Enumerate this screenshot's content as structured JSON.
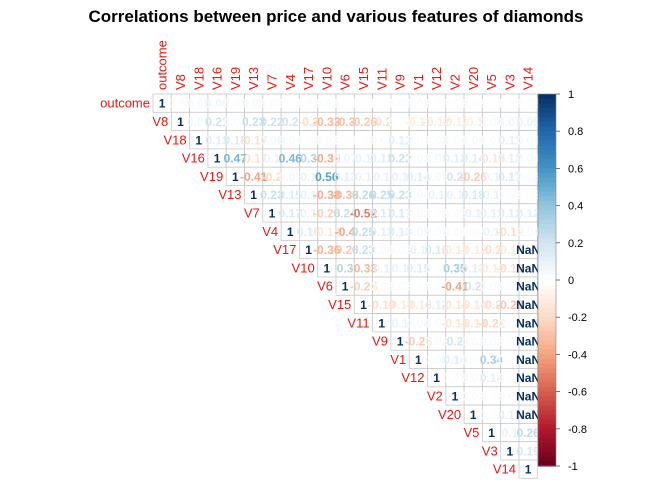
{
  "chart_data": {
    "type": "heatmap",
    "style": "upper-triangle correlation matrix (corrplot)",
    "title": "Correlations between price and various features of diamonds",
    "variables": [
      "outcome",
      "V8",
      "V18",
      "V16",
      "V19",
      "V13",
      "V7",
      "V4",
      "V17",
      "V10",
      "V6",
      "V15",
      "V11",
      "V9",
      "V1",
      "V12",
      "V2",
      "V20",
      "V5",
      "V3",
      "V14"
    ],
    "colorbar": {
      "ticks": [
        "1",
        "0.8",
        "0.6",
        "0.4",
        "0.2",
        "0",
        "-0.2",
        "-0.4",
        "-0.6",
        "-0.8",
        "-1"
      ],
      "tick_values": [
        1,
        0.8,
        0.6,
        0.4,
        0.2,
        0,
        -0.2,
        -0.4,
        -0.6,
        -0.8,
        -1
      ],
      "negative_color": "#67001f",
      "mid_color": "#ffffff",
      "positive_color": "#053061"
    },
    "label_color": "#e8170f",
    "matrix_upper": [
      [
        1,
        0.02,
        0.05,
        0.06,
        0.02,
        0.05,
        0.02,
        0.01,
        0.02,
        0.03,
        0.01,
        0.01,
        0.01,
        0.03,
        0.03,
        0.02,
        0.02,
        0.02,
        0.01,
        0.02,
        0.02
      ],
      [
        1,
        0.06,
        0.21,
        0.02,
        0.23,
        0.22,
        0.2,
        -0.2,
        -0.33,
        -0.3,
        -0.26,
        -0.2,
        0.01,
        -0.11,
        -0.12,
        -0.11,
        -0.1,
        0.04,
        0.07,
        0.09
      ],
      [
        1,
        0.13,
        0.15,
        -0.17,
        0.05,
        0.04,
        0.02,
        0.03,
        0.01,
        0.02,
        0.03,
        0.12,
        0.02,
        0.03,
        0.04,
        0.04,
        0.03,
        0.11,
        0.04
      ],
      [
        1,
        0.47,
        -0.17,
        0.1,
        0.46,
        0.3,
        -0.39,
        0.07,
        0.1,
        0.12,
        0.22,
        0.03,
        0.05,
        0.12,
        0.14,
        -0.15,
        0.12,
        0.04
      ],
      [
        1,
        -0.41,
        -0.2,
        0.05,
        0.1,
        0.56,
        0.13,
        0.1,
        0.1,
        0.1,
        0.14,
        0.05,
        0.2,
        -0.26,
        0.1,
        0.17,
        0.02
      ],
      [
        1,
        0.23,
        0.15,
        0.1,
        -0.38,
        -0.33,
        0.26,
        0.25,
        0.23,
        0.04,
        0.1,
        0.1,
        0.18,
        0.1,
        0.02,
        0.02
      ],
      [
        1,
        0.17,
        0.1,
        -0.25,
        0.24,
        -0.52,
        0.17,
        0.17,
        0.03,
        0.02,
        0.03,
        0.1,
        0.11,
        0.12,
        0.12
      ],
      [
        1,
        0.15,
        -0.14,
        -0.4,
        0.25,
        0.13,
        0.13,
        0.05,
        0.03,
        0.04,
        0.02,
        0.1,
        -0.19,
        0.04
      ],
      [
        1,
        -0.36,
        -0.26,
        0.23,
        0.04,
        0.03,
        0.1,
        0.16,
        -0.13,
        -0.12,
        -0.2,
        -0.12
      ],
      [
        1,
        0.3,
        -0.33,
        0.1,
        0.1,
        0.15,
        0.02,
        0.35,
        0.13,
        -0.12,
        -0.19
      ],
      [
        1,
        -0.25,
        0.03,
        0.03,
        0.02,
        0.02,
        -0.41,
        0.2,
        0.04,
        0.02
      ],
      [
        1,
        -0.19,
        -0.13,
        -0.13,
        0.12,
        -0.15,
        -0.14,
        -0.2,
        -0.28
      ],
      [
        1,
        0.1,
        0.04,
        0.04,
        -0.15,
        -0.14,
        -0.22,
        0.03
      ],
      [
        1,
        -0.26,
        0.03,
        0.2,
        0.03,
        0.03,
        0.02
      ],
      [
        1,
        0.03,
        0.14,
        0.02,
        0.34,
        0.02
      ],
      [
        1,
        0.02,
        0.03,
        0.14,
        0.02
      ],
      [
        1,
        0.02,
        0.02,
        0.03
      ],
      [
        1,
        0.02,
        0.13
      ],
      [
        1,
        0.1,
        0.26
      ],
      [
        1,
        0.19
      ],
      [
        1
      ]
    ]
  }
}
